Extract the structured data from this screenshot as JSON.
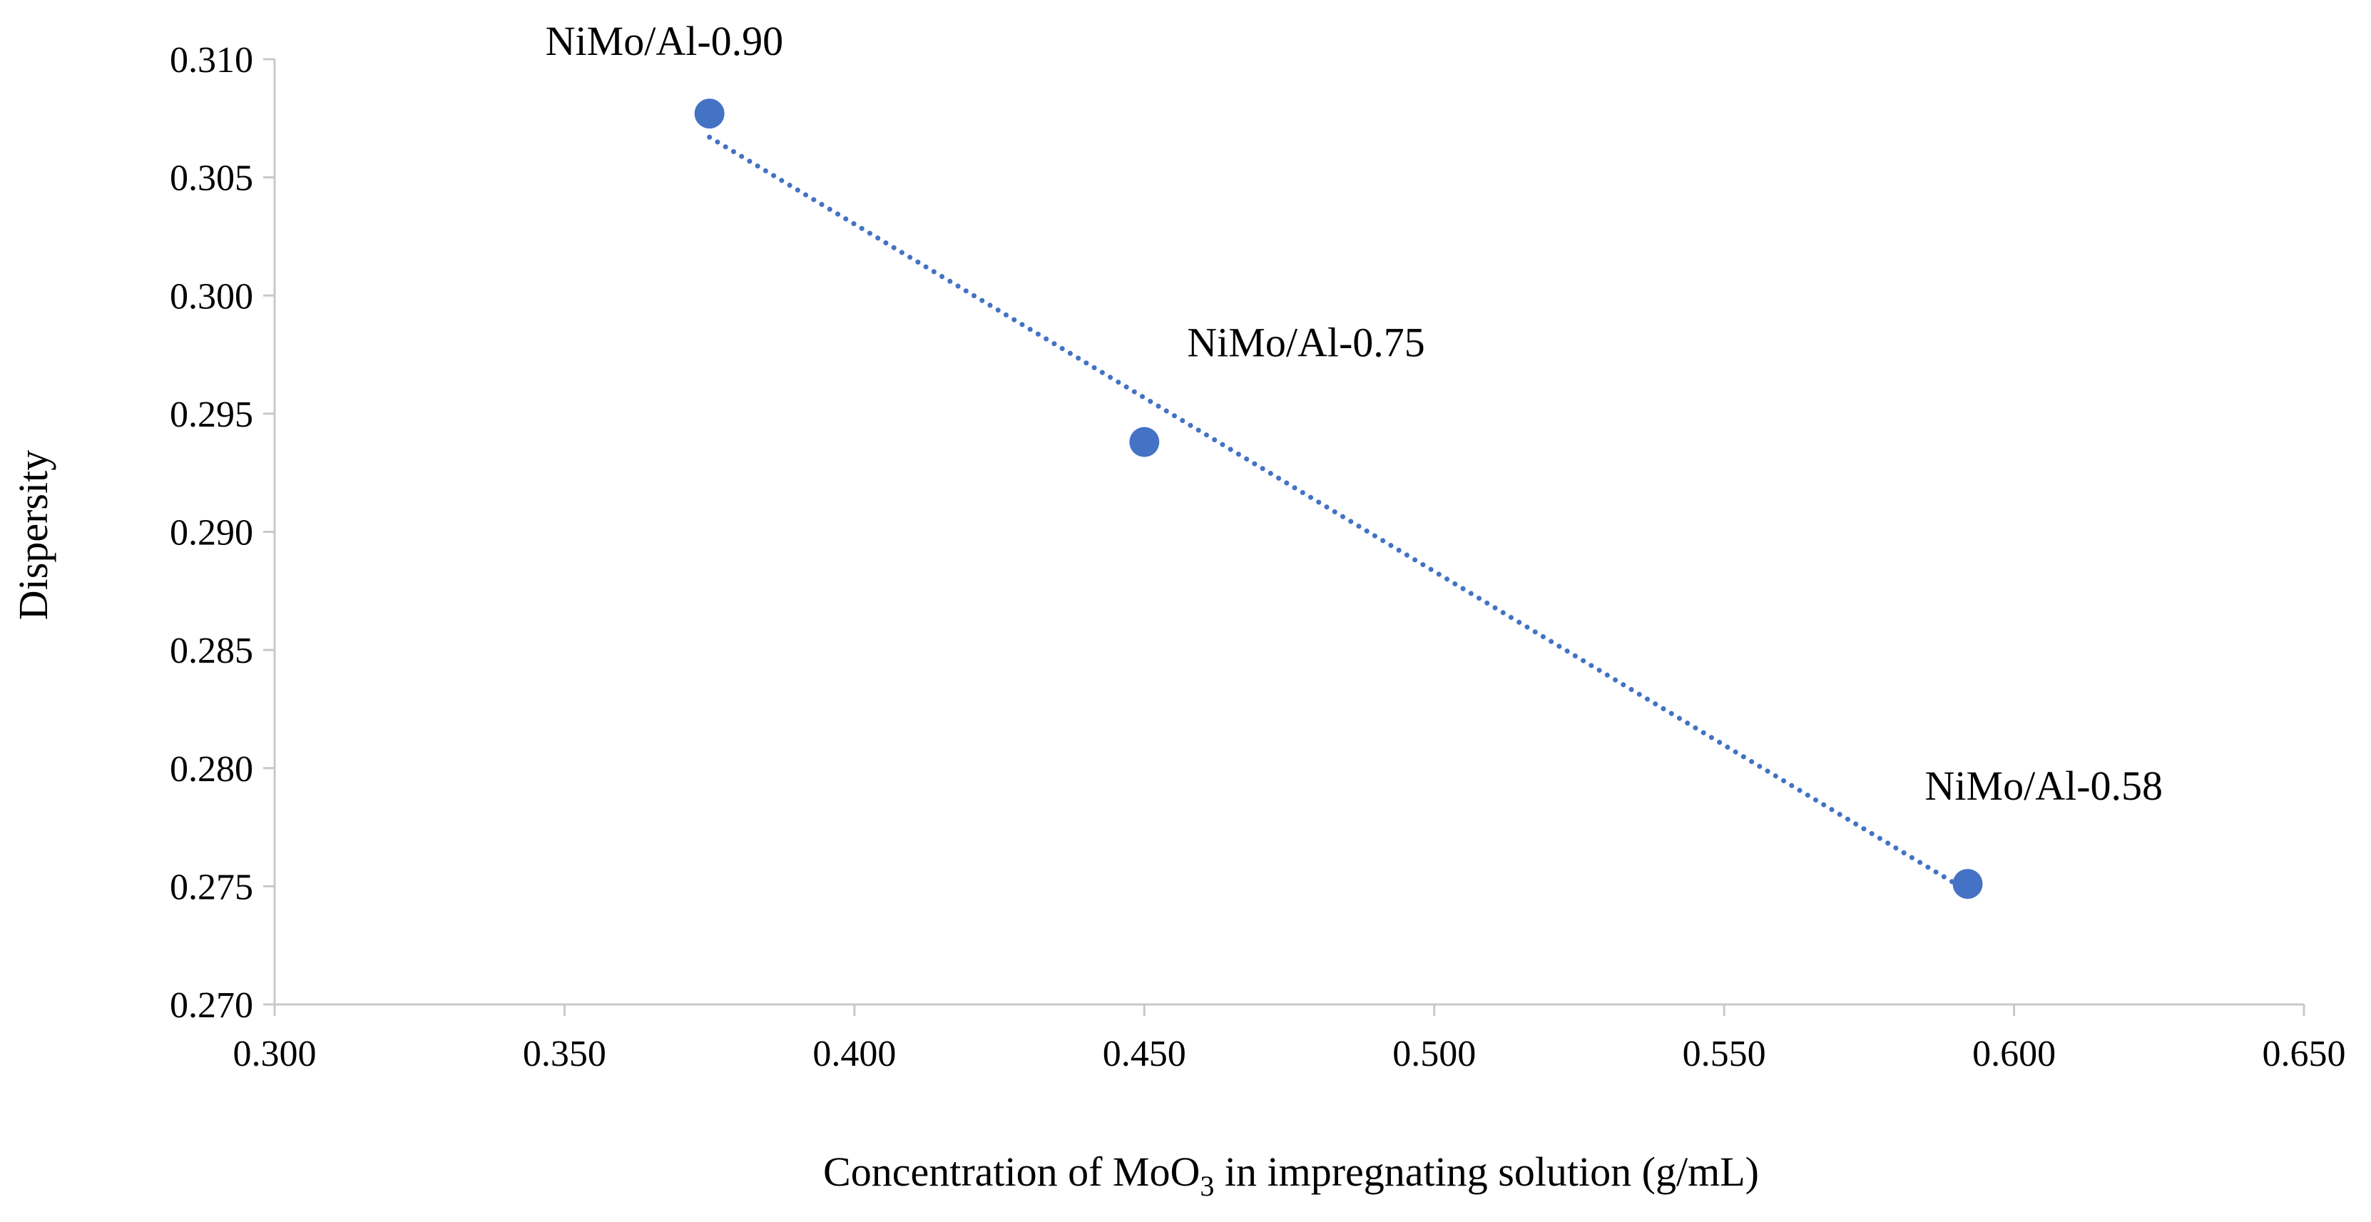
{
  "chart_data": {
    "type": "scatter",
    "title": "",
    "xlabel_parts": [
      "Concentration of MoO",
      "3",
      " in impregnating solution (g/mL)"
    ],
    "ylabel": "Dispersity",
    "xlim": [
      0.3,
      0.65
    ],
    "ylim": [
      0.27,
      0.31
    ],
    "xticks": [
      "0.300",
      "0.350",
      "0.400",
      "0.450",
      "0.500",
      "0.550",
      "0.600",
      "0.650"
    ],
    "yticks": [
      "0.270",
      "0.275",
      "0.280",
      "0.285",
      "0.290",
      "0.295",
      "0.300",
      "0.305",
      "0.310"
    ],
    "grid": false,
    "legend": "none",
    "series": [
      {
        "name": "Dispersity",
        "x": [
          0.375,
          0.45,
          0.592
        ],
        "y": [
          0.3077,
          0.2938,
          0.2751
        ],
        "labels": [
          "NiMo/Al-0.90",
          "NiMo/Al-0.75",
          "NiMo/Al-0.58"
        ]
      }
    ],
    "trendline": {
      "type": "linear",
      "style": "dotted",
      "x_range": [
        0.375,
        0.592
      ],
      "y_range": [
        0.3067,
        0.2748
      ]
    },
    "colors": {
      "marker": "#4472C4",
      "trendline": "#4472C4",
      "axis": "#C8C8C8"
    }
  }
}
